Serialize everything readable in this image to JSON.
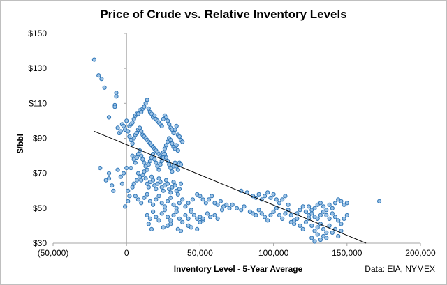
{
  "chart_data": {
    "type": "scatter",
    "title": "Price of Crude vs. Relative Inventory Levels",
    "xlabel": "Inventory Level - 5-Year Average",
    "ylabel": "$/bbl",
    "source": "Data: EIA, NYMEX",
    "xlim": [
      -50000,
      200000
    ],
    "ylim": [
      30,
      150
    ],
    "x_ticks": [
      {
        "value": -50000,
        "label": "(50,000)",
        "color": "#ff0000"
      },
      {
        "value": 0,
        "label": "0",
        "color": "#000000"
      },
      {
        "value": 50000,
        "label": "50,000",
        "color": "#000000"
      },
      {
        "value": 100000,
        "label": "100,000",
        "color": "#000000"
      },
      {
        "value": 150000,
        "label": "150,000",
        "color": "#000000"
      },
      {
        "value": 200000,
        "label": "200,000",
        "color": "#000000"
      }
    ],
    "y_ticks": [
      {
        "value": 30,
        "label": "$30"
      },
      {
        "value": 50,
        "label": "$50"
      },
      {
        "value": 70,
        "label": "$70"
      },
      {
        "value": 90,
        "label": "$90"
      },
      {
        "value": 110,
        "label": "$110"
      },
      {
        "value": 130,
        "label": "$130"
      },
      {
        "value": 150,
        "label": "$150"
      }
    ],
    "grid": false,
    "marker_fill": "#9dc3e6",
    "marker_stroke": "#2e75b6",
    "trendline": {
      "x": [
        -22000,
        163000
      ],
      "y": [
        94,
        30
      ],
      "color": "#000000"
    },
    "points": [
      [
        -22000,
        135
      ],
      [
        -19000,
        126
      ],
      [
        -17000,
        124
      ],
      [
        -15000,
        119
      ],
      [
        -7000,
        114
      ],
      [
        -7000,
        116
      ],
      [
        -8000,
        109
      ],
      [
        -8000,
        108
      ],
      [
        -12000,
        102
      ],
      [
        -18000,
        73
      ],
      [
        -14000,
        66
      ],
      [
        -12000,
        67
      ],
      [
        -10000,
        63
      ],
      [
        -9000,
        60
      ],
      [
        -12000,
        70
      ],
      [
        -6000,
        72
      ],
      [
        -4000,
        68
      ],
      [
        -3000,
        64
      ],
      [
        -2000,
        70
      ],
      [
        0,
        73
      ],
      [
        1000,
        60
      ],
      [
        2000,
        57
      ],
      [
        1000,
        54
      ],
      [
        -1000,
        51
      ],
      [
        4000,
        62
      ],
      [
        5000,
        64
      ],
      [
        7000,
        66
      ],
      [
        3000,
        73
      ],
      [
        -6000,
        96
      ],
      [
        -5000,
        93
      ],
      [
        -4000,
        94
      ],
      [
        -3000,
        98
      ],
      [
        -2000,
        97
      ],
      [
        -1000,
        95
      ],
      [
        0,
        100
      ],
      [
        1000,
        94
      ],
      [
        2000,
        97
      ],
      [
        3000,
        98
      ],
      [
        4000,
        99
      ],
      [
        5000,
        101
      ],
      [
        6000,
        103
      ],
      [
        7000,
        104
      ],
      [
        8000,
        104
      ],
      [
        9000,
        106
      ],
      [
        10000,
        105
      ],
      [
        11000,
        107
      ],
      [
        12000,
        108
      ],
      [
        13000,
        110
      ],
      [
        14000,
        112
      ],
      [
        15000,
        107
      ],
      [
        16000,
        105
      ],
      [
        17000,
        104
      ],
      [
        18000,
        102
      ],
      [
        19000,
        103
      ],
      [
        20000,
        101
      ],
      [
        21000,
        100
      ],
      [
        22000,
        99
      ],
      [
        23000,
        98
      ],
      [
        24000,
        97
      ],
      [
        25000,
        101
      ],
      [
        26000,
        103
      ],
      [
        27000,
        102
      ],
      [
        28000,
        100
      ],
      [
        29000,
        98
      ],
      [
        30000,
        96
      ],
      [
        31000,
        95
      ],
      [
        32000,
        93
      ],
      [
        33000,
        95
      ],
      [
        34000,
        97
      ],
      [
        35000,
        92
      ],
      [
        36000,
        91
      ],
      [
        37000,
        89
      ],
      [
        38000,
        88
      ],
      [
        2000,
        91
      ],
      [
        3000,
        89
      ],
      [
        4000,
        87
      ],
      [
        5000,
        90
      ],
      [
        6000,
        92
      ],
      [
        7000,
        93
      ],
      [
        8000,
        95
      ],
      [
        9000,
        96
      ],
      [
        10000,
        94
      ],
      [
        11000,
        92
      ],
      [
        12000,
        91
      ],
      [
        13000,
        90
      ],
      [
        14000,
        89
      ],
      [
        15000,
        88
      ],
      [
        16000,
        87
      ],
      [
        17000,
        86
      ],
      [
        18000,
        85
      ],
      [
        19000,
        84
      ],
      [
        20000,
        83
      ],
      [
        21000,
        82
      ],
      [
        22000,
        81
      ],
      [
        23000,
        80
      ],
      [
        24000,
        79
      ],
      [
        25000,
        82
      ],
      [
        26000,
        84
      ],
      [
        27000,
        86
      ],
      [
        28000,
        88
      ],
      [
        29000,
        90
      ],
      [
        30000,
        89
      ],
      [
        31000,
        87
      ],
      [
        32000,
        85
      ],
      [
        33000,
        84
      ],
      [
        34000,
        86
      ],
      [
        35000,
        83
      ],
      [
        4000,
        80
      ],
      [
        5000,
        78
      ],
      [
        6000,
        76
      ],
      [
        7000,
        79
      ],
      [
        8000,
        81
      ],
      [
        9000,
        83
      ],
      [
        10000,
        80
      ],
      [
        11000,
        78
      ],
      [
        12000,
        76
      ],
      [
        13000,
        74
      ],
      [
        14000,
        72
      ],
      [
        15000,
        75
      ],
      [
        16000,
        77
      ],
      [
        17000,
        79
      ],
      [
        18000,
        81
      ],
      [
        19000,
        78
      ],
      [
        20000,
        76
      ],
      [
        21000,
        74
      ],
      [
        22000,
        72
      ],
      [
        23000,
        75
      ],
      [
        24000,
        77
      ],
      [
        25000,
        79
      ],
      [
        26000,
        81
      ],
      [
        27000,
        79
      ],
      [
        28000,
        77
      ],
      [
        29000,
        75
      ],
      [
        30000,
        73
      ],
      [
        31000,
        71
      ],
      [
        32000,
        74
      ],
      [
        33000,
        76
      ],
      [
        34000,
        74
      ],
      [
        35000,
        72
      ],
      [
        36000,
        76
      ],
      [
        37000,
        75
      ],
      [
        8000,
        70
      ],
      [
        9000,
        68
      ],
      [
        10000,
        66
      ],
      [
        11000,
        69
      ],
      [
        12000,
        71
      ],
      [
        13000,
        67
      ],
      [
        14000,
        64
      ],
      [
        15000,
        62
      ],
      [
        16000,
        65
      ],
      [
        17000,
        68
      ],
      [
        18000,
        66
      ],
      [
        19000,
        63
      ],
      [
        20000,
        61
      ],
      [
        21000,
        64
      ],
      [
        22000,
        67
      ],
      [
        23000,
        65
      ],
      [
        24000,
        62
      ],
      [
        25000,
        60
      ],
      [
        26000,
        63
      ],
      [
        27000,
        66
      ],
      [
        28000,
        64
      ],
      [
        29000,
        61
      ],
      [
        30000,
        59
      ],
      [
        31000,
        62
      ],
      [
        32000,
        65
      ],
      [
        33000,
        63
      ],
      [
        34000,
        60
      ],
      [
        35000,
        58
      ],
      [
        36000,
        61
      ],
      [
        37000,
        64
      ],
      [
        6000,
        57
      ],
      [
        8000,
        55
      ],
      [
        10000,
        53
      ],
      [
        12000,
        56
      ],
      [
        14000,
        58
      ],
      [
        16000,
        54
      ],
      [
        18000,
        52
      ],
      [
        20000,
        55
      ],
      [
        22000,
        57
      ],
      [
        24000,
        53
      ],
      [
        26000,
        51
      ],
      [
        28000,
        54
      ],
      [
        30000,
        56
      ],
      [
        32000,
        52
      ],
      [
        34000,
        50
      ],
      [
        36000,
        53
      ],
      [
        38000,
        55
      ],
      [
        40000,
        51
      ],
      [
        42000,
        53
      ],
      [
        44000,
        49
      ],
      [
        14000,
        46
      ],
      [
        16000,
        44
      ],
      [
        18000,
        48
      ],
      [
        20000,
        45
      ],
      [
        22000,
        43
      ],
      [
        24000,
        47
      ],
      [
        26000,
        49
      ],
      [
        28000,
        45
      ],
      [
        30000,
        43
      ],
      [
        32000,
        46
      ],
      [
        34000,
        48
      ],
      [
        36000,
        44
      ],
      [
        38000,
        42
      ],
      [
        40000,
        46
      ],
      [
        42000,
        44
      ],
      [
        44000,
        48
      ],
      [
        46000,
        46
      ],
      [
        48000,
        44
      ],
      [
        50000,
        45
      ],
      [
        52000,
        43
      ],
      [
        15000,
        41
      ],
      [
        17000,
        38
      ],
      [
        25000,
        39
      ],
      [
        28000,
        40
      ],
      [
        30000,
        41
      ],
      [
        35000,
        38
      ],
      [
        37000,
        37
      ],
      [
        42000,
        40
      ],
      [
        44000,
        39
      ],
      [
        48000,
        38
      ],
      [
        50000,
        42
      ],
      [
        52000,
        44
      ],
      [
        55000,
        47
      ],
      [
        57000,
        45
      ],
      [
        60000,
        46
      ],
      [
        62000,
        44
      ],
      [
        65000,
        49
      ],
      [
        45000,
        55
      ],
      [
        48000,
        58
      ],
      [
        50000,
        57
      ],
      [
        52000,
        55
      ],
      [
        54000,
        53
      ],
      [
        56000,
        55
      ],
      [
        58000,
        57
      ],
      [
        60000,
        53
      ],
      [
        62000,
        52
      ],
      [
        64000,
        54
      ],
      [
        66000,
        51
      ],
      [
        68000,
        52
      ],
      [
        70000,
        50
      ],
      [
        72000,
        52
      ],
      [
        75000,
        50
      ],
      [
        78000,
        49
      ],
      [
        80000,
        51
      ],
      [
        78000,
        60
      ],
      [
        82000,
        59
      ],
      [
        86000,
        57
      ],
      [
        88000,
        56
      ],
      [
        90000,
        58
      ],
      [
        92000,
        55
      ],
      [
        94000,
        57
      ],
      [
        96000,
        59
      ],
      [
        98000,
        56
      ],
      [
        100000,
        58
      ],
      [
        102000,
        55
      ],
      [
        104000,
        53
      ],
      [
        106000,
        55
      ],
      [
        108000,
        57
      ],
      [
        110000,
        52
      ],
      [
        84000,
        48
      ],
      [
        86000,
        47
      ],
      [
        88000,
        46
      ],
      [
        90000,
        49
      ],
      [
        92000,
        47
      ],
      [
        94000,
        45
      ],
      [
        96000,
        43
      ],
      [
        98000,
        46
      ],
      [
        100000,
        48
      ],
      [
        102000,
        50
      ],
      [
        104000,
        46
      ],
      [
        106000,
        44
      ],
      [
        108000,
        47
      ],
      [
        110000,
        49
      ],
      [
        112000,
        46
      ],
      [
        114000,
        43
      ],
      [
        116000,
        47
      ],
      [
        118000,
        49
      ],
      [
        120000,
        51
      ],
      [
        122000,
        48
      ],
      [
        124000,
        46
      ],
      [
        112000,
        42
      ],
      [
        114000,
        41
      ],
      [
        116000,
        44
      ],
      [
        118000,
        40
      ],
      [
        120000,
        38
      ],
      [
        122000,
        42
      ],
      [
        124000,
        44
      ],
      [
        126000,
        40
      ],
      [
        128000,
        37
      ],
      [
        130000,
        39
      ],
      [
        132000,
        41
      ],
      [
        134000,
        38
      ],
      [
        136000,
        36
      ],
      [
        138000,
        40
      ],
      [
        124000,
        51
      ],
      [
        126000,
        49
      ],
      [
        128000,
        50
      ],
      [
        130000,
        52
      ],
      [
        132000,
        53
      ],
      [
        134000,
        51
      ],
      [
        136000,
        49
      ],
      [
        138000,
        52
      ],
      [
        140000,
        50
      ],
      [
        142000,
        53
      ],
      [
        144000,
        55
      ],
      [
        146000,
        54
      ],
      [
        148000,
        52
      ],
      [
        150000,
        53
      ],
      [
        126000,
        47
      ],
      [
        128000,
        45
      ],
      [
        130000,
        44
      ],
      [
        132000,
        46
      ],
      [
        134000,
        48
      ],
      [
        136000,
        46
      ],
      [
        138000,
        44
      ],
      [
        140000,
        47
      ],
      [
        142000,
        45
      ],
      [
        144000,
        43
      ],
      [
        146000,
        41
      ],
      [
        148000,
        44
      ],
      [
        150000,
        46
      ],
      [
        126000,
        33
      ],
      [
        128000,
        31
      ],
      [
        130000,
        35
      ],
      [
        132000,
        32
      ],
      [
        134000,
        34
      ],
      [
        136000,
        33
      ],
      [
        140000,
        36
      ],
      [
        142000,
        38
      ],
      [
        144000,
        34
      ],
      [
        146000,
        37
      ],
      [
        172000,
        54
      ]
    ]
  }
}
